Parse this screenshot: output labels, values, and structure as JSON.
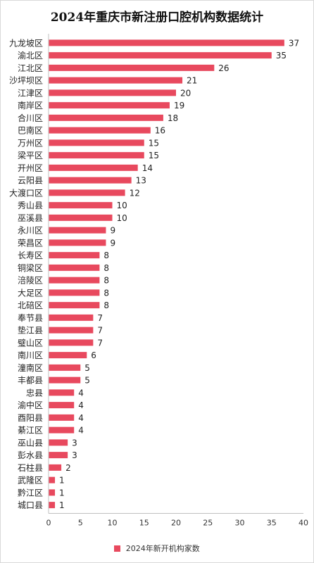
{
  "chart_data": {
    "type": "bar",
    "orientation": "horizontal",
    "title": "2024年重庆市新注册口腔机构数据统计",
    "categories": [
      "九龙坡区",
      "渝北区",
      "江北区",
      "沙坪坝区",
      "江津区",
      "南岸区",
      "合川区",
      "巴南区",
      "万州区",
      "梁平区",
      "开州区",
      "云阳县",
      "大渡口区",
      "秀山县",
      "巫溪县",
      "永川区",
      "荣昌区",
      "长寿区",
      "铜梁区",
      "涪陵区",
      "大足区",
      "北碚区",
      "奉节县",
      "垫江县",
      "璧山区",
      "南川区",
      "潼南区",
      "丰都县",
      "忠县",
      "渝中区",
      "酉阳县",
      "綦江区",
      "巫山县",
      "彭水县",
      "石柱县",
      "武隆区",
      "黔江区",
      "城口县"
    ],
    "series": [
      {
        "name": "2024年新开机构家数",
        "values": [
          37,
          35,
          26,
          21,
          20,
          19,
          18,
          16,
          15,
          15,
          14,
          13,
          12,
          10,
          10,
          9,
          9,
          8,
          8,
          8,
          8,
          8,
          7,
          7,
          7,
          6,
          5,
          5,
          4,
          4,
          4,
          4,
          3,
          3,
          2,
          1,
          1,
          1
        ]
      }
    ],
    "xlim": [
      0,
      40
    ],
    "xticks": [
      0,
      5,
      10,
      15,
      20,
      25,
      30,
      35,
      40
    ],
    "data_labels": true,
    "grid": false,
    "legend": "bottom-center",
    "bar_color": "#e8495e"
  }
}
